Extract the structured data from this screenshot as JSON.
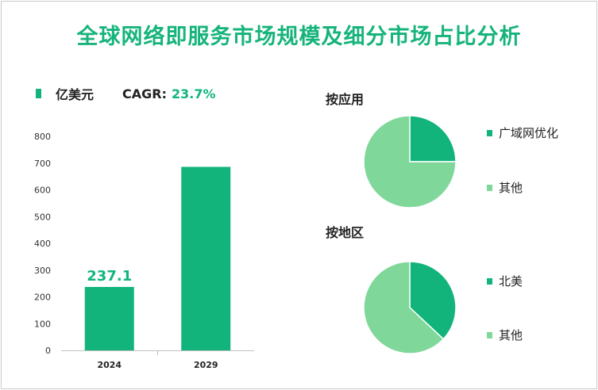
{
  "title": "全球网络即服务市场规模及细分市场占比分析",
  "legend": {
    "unit": "亿美元",
    "cagr_label": "CAGR:",
    "cagr_value": "23.7%"
  },
  "colors": {
    "primary": "#12b47c",
    "secondary": "#7fd79a",
    "title": "#16b47b"
  },
  "chart_data": [
    {
      "type": "bar",
      "categories": [
        "2024",
        "2029"
      ],
      "values": [
        237.1,
        686
      ],
      "data_labels": [
        "237.1",
        ""
      ],
      "ylim": [
        0,
        800
      ],
      "yticks": [
        0,
        100,
        200,
        300,
        400,
        500,
        600,
        700,
        800
      ],
      "ylabel": "亿美元",
      "title": ""
    },
    {
      "type": "pie",
      "title": "按应用",
      "labels": [
        "广域网优化",
        "其他"
      ],
      "values": [
        25,
        75
      ]
    },
    {
      "type": "pie",
      "title": "按地区",
      "labels": [
        "北美",
        "其他"
      ],
      "values": [
        37,
        63
      ]
    }
  ]
}
